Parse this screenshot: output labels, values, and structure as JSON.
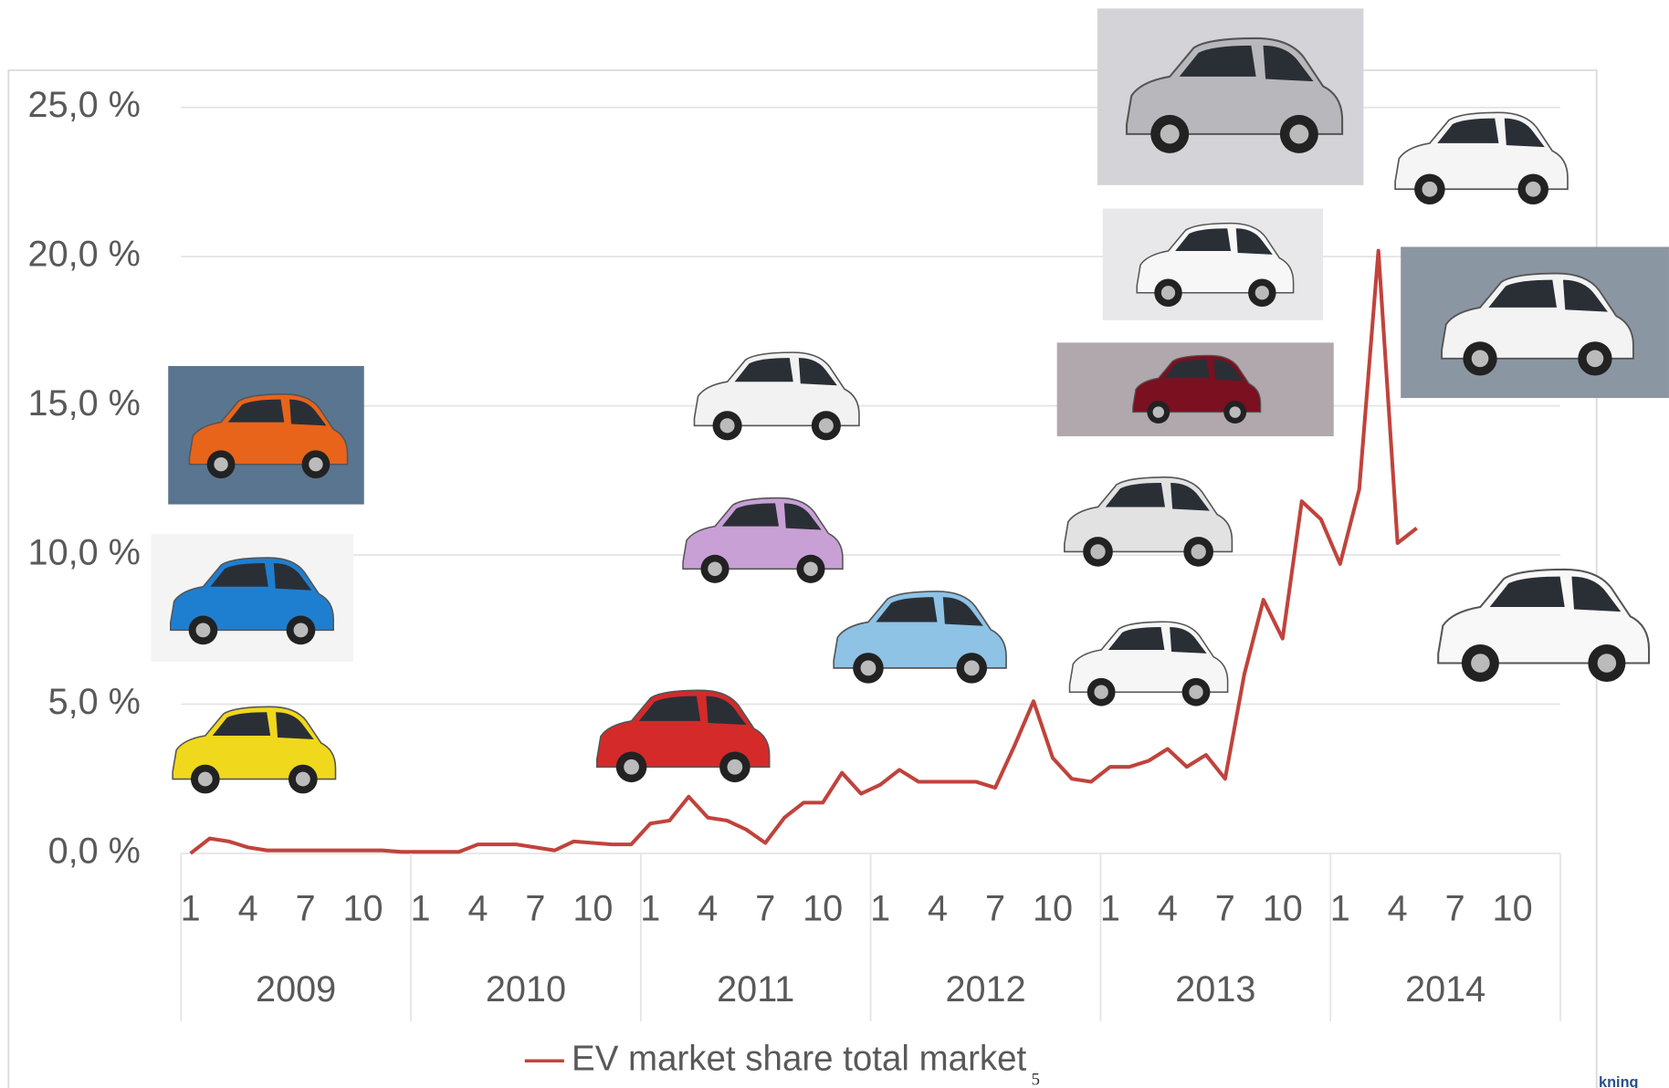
{
  "chart_data": {
    "type": "line",
    "categories": [
      "1",
      null,
      null,
      "4",
      null,
      null,
      "7",
      null,
      null,
      "10",
      null,
      null,
      "1",
      null,
      null,
      "4",
      null,
      null,
      "7",
      null,
      null,
      "10",
      null,
      null,
      "1",
      null,
      null,
      "4",
      null,
      null,
      "7",
      null,
      null,
      "10",
      null,
      null,
      "1",
      null,
      null,
      "4",
      null,
      null,
      "7",
      null,
      null,
      "10",
      null,
      null,
      "1",
      null,
      null,
      "4",
      null,
      null,
      "7",
      null,
      null,
      "10",
      null,
      null,
      "1",
      null,
      null,
      "4",
      null,
      null,
      "7",
      null,
      null,
      "10",
      null,
      null
    ],
    "year_labels": [
      "2009",
      "2010",
      "2011",
      "2012",
      "2013",
      "2014"
    ],
    "series": [
      {
        "name": "EV market share total market",
        "color": "#c0433c",
        "values": [
          0.0,
          0.5,
          0.4,
          0.2,
          0.1,
          0.1,
          0.1,
          0.1,
          0.1,
          0.1,
          0.1,
          0.05,
          0.05,
          0.05,
          0.05,
          0.3,
          0.3,
          0.3,
          0.2,
          0.1,
          0.4,
          0.35,
          0.3,
          0.3,
          1.0,
          1.1,
          1.9,
          1.2,
          1.1,
          0.8,
          0.35,
          1.2,
          1.7,
          1.7,
          2.7,
          2.0,
          2.3,
          2.8,
          2.4,
          2.4,
          2.4,
          2.4,
          2.2,
          3.6,
          5.1,
          3.2,
          2.5,
          2.4,
          2.9,
          2.9,
          3.1,
          3.5,
          2.9,
          3.3,
          2.5,
          6.0,
          8.5,
          7.2,
          11.8,
          11.2,
          9.7,
          12.2,
          20.2,
          10.4,
          10.9,
          null,
          null,
          null,
          null,
          null,
          null,
          null
        ]
      }
    ],
    "ylim": [
      0,
      25
    ],
    "yticks": [
      {
        "value": 0,
        "label": "0,0 %"
      },
      {
        "value": 5,
        "label": "5,0 %"
      },
      {
        "value": 10,
        "label": "10,0 %"
      },
      {
        "value": 15,
        "label": "15,0 %"
      },
      {
        "value": 20,
        "label": "20,0 %"
      },
      {
        "value": 25,
        "label": "25,0 %"
      }
    ],
    "grid": true,
    "legend": "bottom"
  },
  "footer": {
    "page_number": "5",
    "logo_text": "kning"
  }
}
